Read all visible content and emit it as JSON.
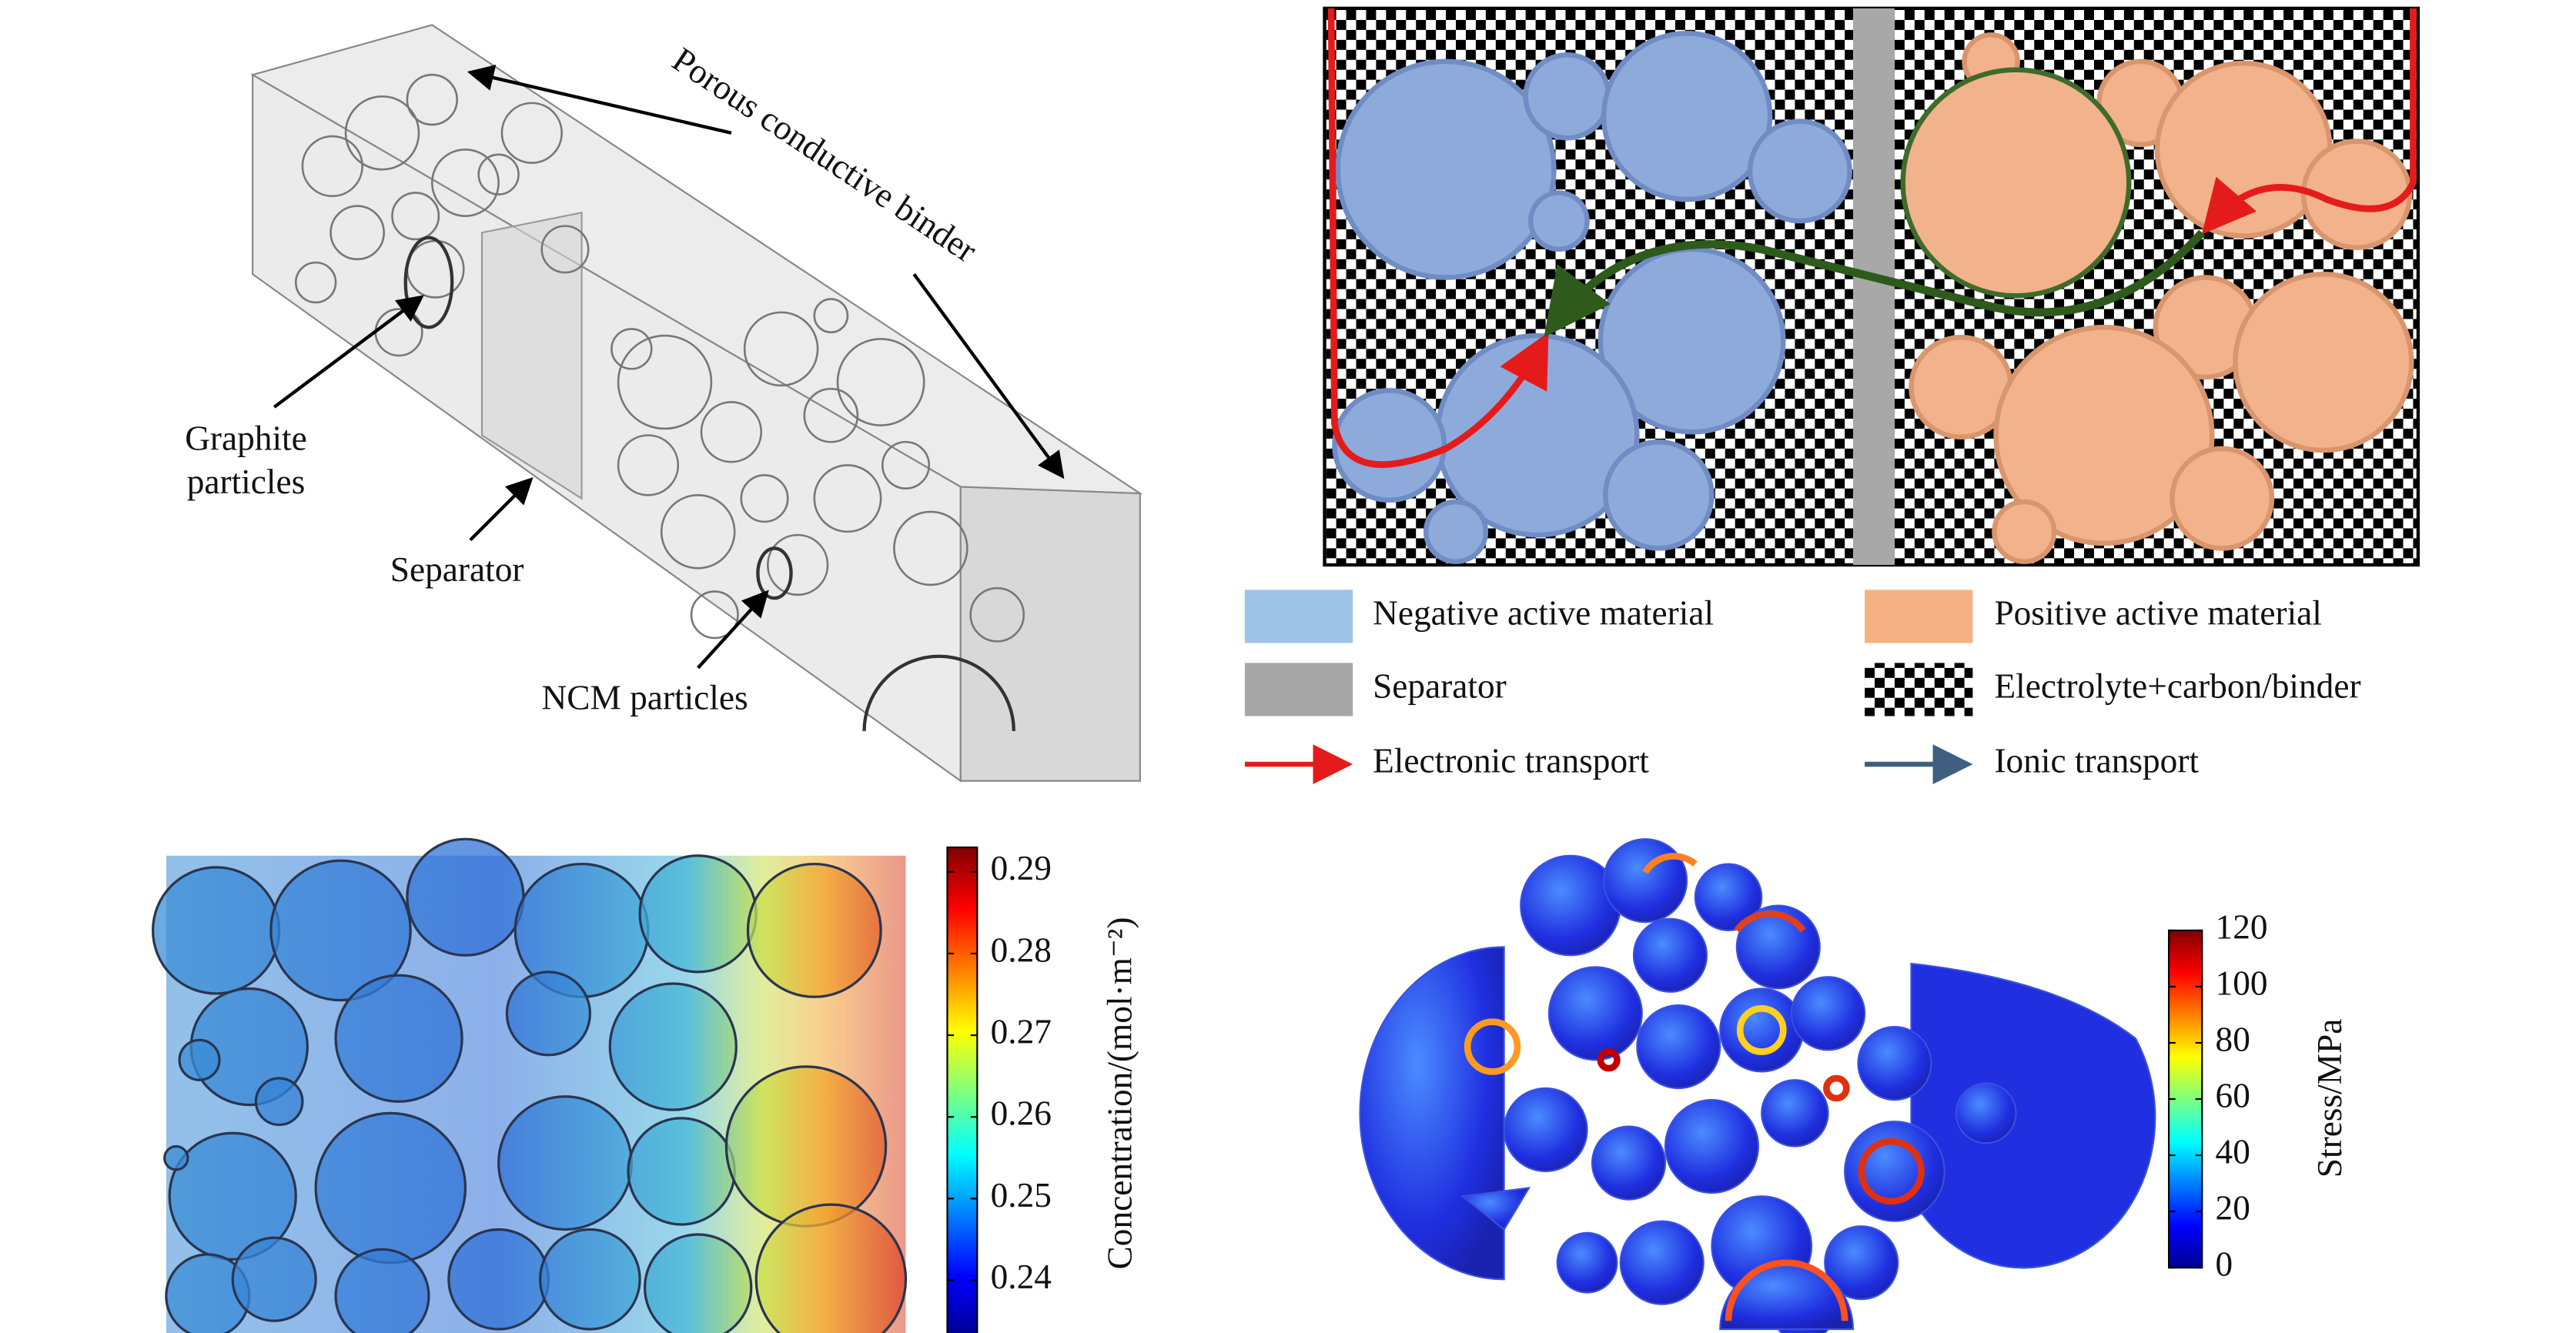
{
  "panel_a": {
    "labels": {
      "binder": "Porous conductive binder",
      "graphite": [
        "Graphite",
        "particles"
      ],
      "separator": "Separator",
      "ncm": "NCM particles"
    }
  },
  "panel_b": {
    "legend": [
      {
        "label": "Negative active material"
      },
      {
        "label": "Positive active material"
      },
      {
        "label": "Separator"
      },
      {
        "label": "Electrolyte+carbon/binder"
      },
      {
        "label": "Electronic transport"
      },
      {
        "label": "Ionic transport"
      }
    ]
  },
  "panel_c": {
    "colorbar": {
      "label": "Concentration/(mol·m⁻²)",
      "lim": [
        0.233,
        0.293
      ],
      "ticks": [
        0.24,
        0.25,
        0.26,
        0.27,
        0.28,
        0.29
      ]
    }
  },
  "panel_d": {
    "colorbar": {
      "label": "Stress/MPa",
      "lim": [
        0,
        120
      ],
      "ticks": [
        0,
        20,
        40,
        60,
        80,
        100,
        120
      ]
    }
  }
}
